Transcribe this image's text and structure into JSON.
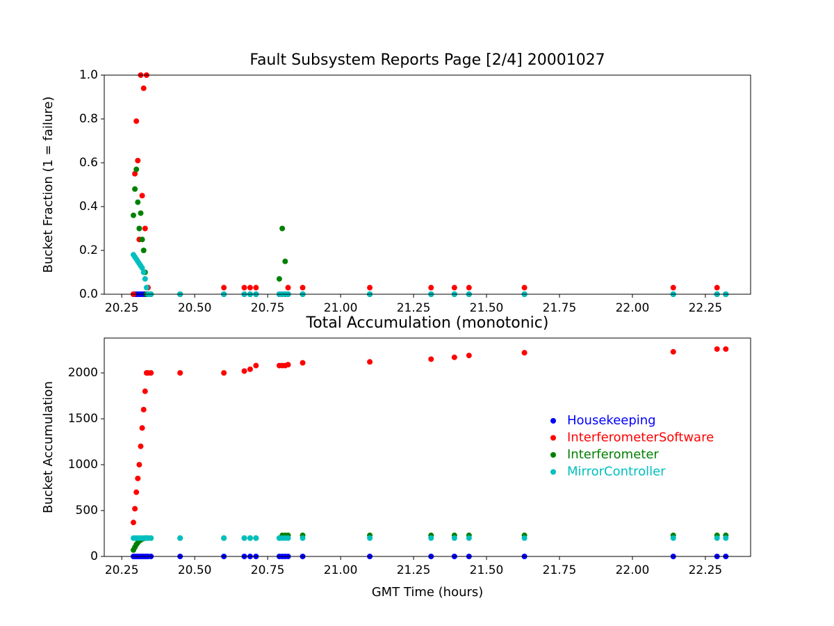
{
  "chart_data": [
    {
      "type": "scatter",
      "title": "Fault Subsystem Reports Page [2/4] 20001027",
      "ylabel": "Bucket Fraction (1 = failure)",
      "x": [
        20.29,
        20.295,
        20.3,
        20.305,
        20.31,
        20.315,
        20.32,
        20.325,
        20.33,
        20.335,
        20.34,
        20.35,
        20.45,
        20.6,
        20.67,
        20.69,
        20.71,
        20.79,
        20.8,
        20.81,
        20.82,
        20.87,
        21.1,
        21.31,
        21.39,
        21.44,
        21.63,
        22.14,
        22.29,
        22.32
      ],
      "series": [
        {
          "name": "Housekeeping",
          "color": "#0000ff",
          "values": [
            0,
            0,
            0,
            0,
            0,
            0,
            0,
            0,
            0,
            0,
            0,
            0,
            0,
            0,
            0,
            0,
            0,
            0,
            0,
            0,
            0,
            0,
            0,
            0,
            0,
            0,
            0,
            0,
            0,
            0
          ]
        },
        {
          "name": "InterferometerSoftware",
          "color": "#ff0000",
          "values": [
            0,
            0.55,
            0.79,
            0.61,
            0.25,
            1.0,
            0.45,
            0.94,
            0.3,
            1.0,
            0.03,
            0,
            0,
            0.03,
            0.03,
            0.03,
            0.03,
            0,
            0,
            0,
            0.03,
            0.03,
            0.03,
            0.03,
            0.03,
            0.03,
            0.03,
            0.03,
            0.03,
            0
          ]
        },
        {
          "name": "Interferometer",
          "color": "#008000",
          "values": [
            0.36,
            0.48,
            0.57,
            0.42,
            0.3,
            0.37,
            0.25,
            0.2,
            0.1,
            0,
            0,
            0,
            0,
            0,
            0,
            0,
            0,
            0.07,
            0.3,
            0.15,
            0,
            0,
            0,
            0,
            0,
            0,
            0,
            0,
            0,
            0
          ]
        },
        {
          "name": "MirrorController",
          "color": "#00bfbf",
          "values": [
            0.18,
            0.17,
            0.16,
            0.15,
            0.14,
            0.13,
            0.12,
            0.1,
            0.07,
            0.03,
            0,
            0,
            0,
            0,
            0,
            0,
            0,
            0,
            0,
            0,
            0,
            0,
            0,
            0,
            0,
            0,
            0,
            0,
            0,
            0
          ]
        }
      ],
      "xlim": [
        20.19,
        22.405
      ],
      "xticks": [
        20.25,
        {
          "value": 20.5,
          "label": "20.50"
        },
        20.75,
        {
          "value": 21.0,
          "label": "21.00"
        },
        21.25,
        {
          "value": 21.5,
          "label": "21.50"
        },
        21.75,
        {
          "value": 22.0,
          "label": "22.00"
        },
        22.25
      ],
      "ylim": [
        0,
        1
      ],
      "yticks": [
        {
          "value": 0,
          "label": "0.0"
        },
        0.2,
        0.4,
        0.6,
        0.8,
        {
          "value": 1,
          "label": "1.0"
        }
      ]
    },
    {
      "type": "scatter",
      "title": "Total Accumulation (monotonic)",
      "ylabel": "Bucket Accumulation",
      "xlabel": "GMT Time (hours)",
      "x": [
        20.29,
        20.295,
        20.3,
        20.305,
        20.31,
        20.315,
        20.32,
        20.325,
        20.33,
        20.335,
        20.34,
        20.35,
        20.45,
        20.6,
        20.67,
        20.69,
        20.71,
        20.79,
        20.8,
        20.81,
        20.82,
        20.87,
        21.1,
        21.31,
        21.39,
        21.44,
        21.63,
        22.14,
        22.29,
        22.32
      ],
      "series": [
        {
          "name": "Housekeeping",
          "color": "#0000ff",
          "values": [
            0,
            0,
            0,
            0,
            0,
            0,
            0,
            0,
            0,
            0,
            0,
            0,
            0,
            0,
            0,
            0,
            0,
            0,
            0,
            0,
            0,
            0,
            0,
            0,
            0,
            0,
            0,
            0,
            0,
            0
          ]
        },
        {
          "name": "InterferometerSoftware",
          "color": "#ff0000",
          "values": [
            370,
            520,
            700,
            850,
            1000,
            1200,
            1400,
            1600,
            1800,
            2000,
            2000,
            2000,
            2000,
            2000,
            2020,
            2040,
            2080,
            2080,
            2080,
            2080,
            2090,
            2110,
            2120,
            2150,
            2170,
            2190,
            2220,
            2230,
            2260,
            2260
          ]
        },
        {
          "name": "Interferometer",
          "color": "#008000",
          "values": [
            70,
            100,
            130,
            150,
            170,
            180,
            190,
            195,
            200,
            200,
            200,
            200,
            200,
            200,
            200,
            200,
            200,
            200,
            230,
            230,
            230,
            230,
            230,
            230,
            230,
            230,
            230,
            230,
            230,
            230
          ]
        },
        {
          "name": "MirrorController",
          "color": "#00bfbf",
          "values": [
            200,
            200,
            200,
            200,
            200,
            200,
            200,
            200,
            200,
            200,
            200,
            200,
            200,
            200,
            200,
            200,
            200,
            200,
            200,
            200,
            200,
            200,
            200,
            200,
            200,
            200,
            200,
            200,
            200,
            200
          ]
        }
      ],
      "xlim": [
        20.19,
        22.405
      ],
      "xticks": [
        20.25,
        {
          "value": 20.5,
          "label": "20.50"
        },
        20.75,
        {
          "value": 21.0,
          "label": "21.00"
        },
        21.25,
        {
          "value": 21.5,
          "label": "21.50"
        },
        21.75,
        {
          "value": 22.0,
          "label": "22.00"
        },
        22.25
      ],
      "ylim": [
        0,
        2380
      ],
      "yticks": [
        0,
        500,
        1000,
        1500,
        2000
      ],
      "legend": "center right"
    }
  ]
}
